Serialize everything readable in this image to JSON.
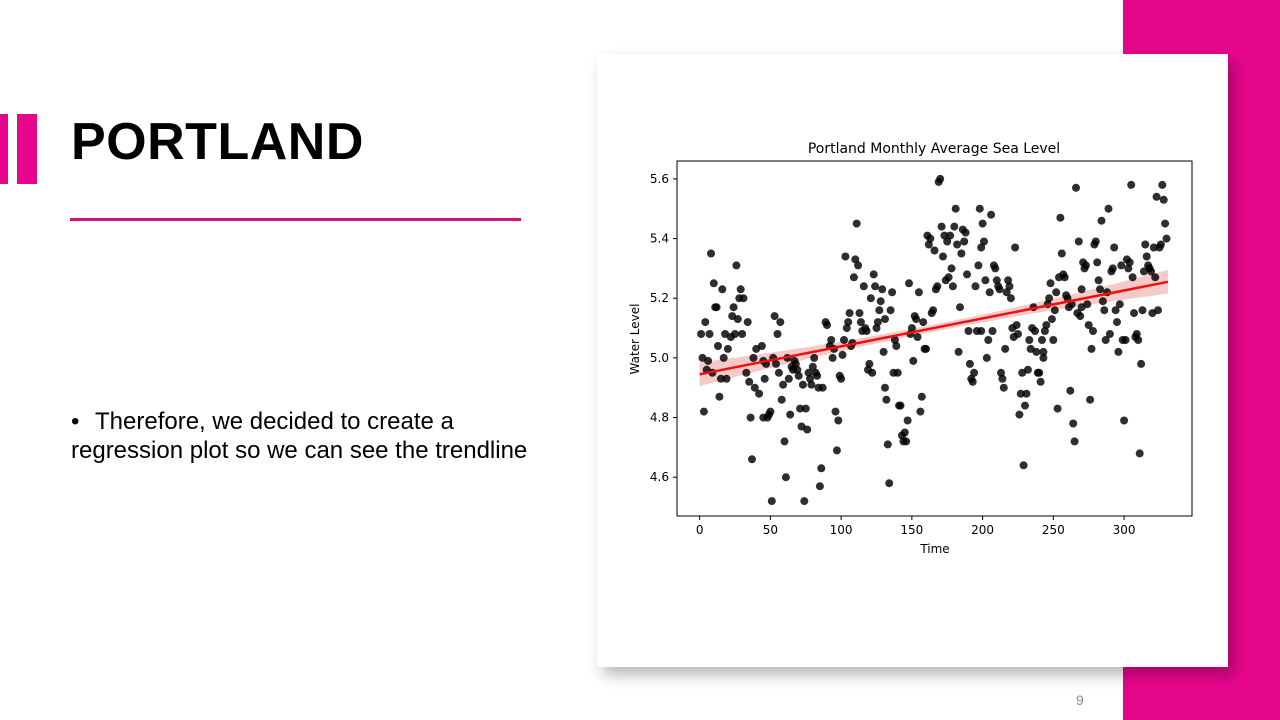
{
  "slide": {
    "title": "PORTLAND",
    "bullet": "Therefore, we decided to create a regression plot so we can see the trendline",
    "page_number": "9",
    "accent_color": "#e6068c"
  },
  "chart_data": {
    "type": "scatter",
    "title": "Portland Monthly Average Sea Level",
    "xlabel": "Time",
    "ylabel": "Water Level",
    "xlim": [
      -16,
      348
    ],
    "ylim": [
      4.47,
      5.66
    ],
    "xticks": [
      0,
      50,
      100,
      150,
      200,
      250,
      300
    ],
    "yticks": [
      4.6,
      4.8,
      5.0,
      5.2,
      5.4,
      5.6
    ],
    "xtick_labels": [
      "0",
      "50",
      "100",
      "150",
      "200",
      "250",
      "300"
    ],
    "ytick_labels": [
      "4.6",
      "4.8",
      "5.0",
      "5.2",
      "5.4",
      "5.6"
    ],
    "grid": false,
    "point_color": "#000000",
    "regression": {
      "color": "#ee1111",
      "ci_color": "#f4b8b8",
      "x_range": [
        0,
        331
      ],
      "y_start": 4.945,
      "y_end": 5.255,
      "ci_halfwidth_ends": 0.04,
      "ci_halfwidth_mid": 0.012
    },
    "points": [
      [
        1,
        5.08
      ],
      [
        2,
        5.0
      ],
      [
        3,
        4.82
      ],
      [
        4,
        5.12
      ],
      [
        5,
        4.96
      ],
      [
        6,
        4.99
      ],
      [
        7,
        5.08
      ],
      [
        8,
        5.35
      ],
      [
        9,
        4.95
      ],
      [
        10,
        5.25
      ],
      [
        11,
        5.17
      ],
      [
        12,
        5.17
      ],
      [
        13,
        5.04
      ],
      [
        14,
        4.87
      ],
      [
        15,
        4.93
      ],
      [
        16,
        5.23
      ],
      [
        17,
        5.0
      ],
      [
        18,
        5.08
      ],
      [
        19,
        4.93
      ],
      [
        20,
        5.03
      ],
      [
        22,
        5.07
      ],
      [
        23,
        5.14
      ],
      [
        24,
        5.17
      ],
      [
        25,
        5.08
      ],
      [
        26,
        5.31
      ],
      [
        27,
        5.13
      ],
      [
        28,
        5.2
      ],
      [
        29,
        5.23
      ],
      [
        30,
        5.08
      ],
      [
        31,
        5.2
      ],
      [
        33,
        4.95
      ],
      [
        34,
        5.12
      ],
      [
        35,
        4.92
      ],
      [
        36,
        4.8
      ],
      [
        37,
        4.66
      ],
      [
        38,
        5.0
      ],
      [
        39,
        4.9
      ],
      [
        40,
        5.03
      ],
      [
        42,
        4.88
      ],
      [
        44,
        5.04
      ],
      [
        45,
        4.99
      ],
      [
        46,
        4.93
      ],
      [
        47,
        4.98
      ],
      [
        48,
        4.8
      ],
      [
        49,
        4.81
      ],
      [
        50,
        4.82
      ],
      [
        51,
        4.52
      ],
      [
        52,
        5.0
      ],
      [
        53,
        5.14
      ],
      [
        54,
        4.98
      ],
      [
        55,
        5.08
      ],
      [
        56,
        4.95
      ],
      [
        57,
        5.12
      ],
      [
        58,
        4.86
      ],
      [
        59,
        4.91
      ],
      [
        60,
        4.72
      ],
      [
        61,
        4.6
      ],
      [
        62,
        5.0
      ],
      [
        63,
        4.93
      ],
      [
        64,
        4.81
      ],
      [
        65,
        4.97
      ],
      [
        66,
        4.96
      ],
      [
        67,
        4.99
      ],
      [
        68,
        4.98
      ],
      [
        69,
        4.96
      ],
      [
        70,
        4.94
      ],
      [
        71,
        4.83
      ],
      [
        72,
        4.77
      ],
      [
        73,
        4.91
      ],
      [
        74,
        4.52
      ],
      [
        75,
        4.83
      ],
      [
        76,
        4.76
      ],
      [
        77,
        4.95
      ],
      [
        78,
        4.93
      ],
      [
        79,
        4.91
      ],
      [
        80,
        4.97
      ],
      [
        81,
        5.0
      ],
      [
        82,
        4.95
      ],
      [
        83,
        4.94
      ],
      [
        84,
        4.9
      ],
      [
        85,
        4.57
      ],
      [
        86,
        4.63
      ],
      [
        87,
        4.9
      ],
      [
        89,
        5.12
      ],
      [
        90,
        5.11
      ],
      [
        92,
        5.04
      ],
      [
        93,
        5.06
      ],
      [
        94,
        5.0
      ],
      [
        95,
        5.03
      ],
      [
        96,
        4.82
      ],
      [
        97,
        4.69
      ],
      [
        98,
        4.79
      ],
      [
        99,
        4.94
      ],
      [
        100,
        4.93
      ],
      [
        101,
        5.01
      ],
      [
        102,
        5.06
      ],
      [
        103,
        5.34
      ],
      [
        104,
        5.1
      ],
      [
        105,
        5.12
      ],
      [
        106,
        5.15
      ],
      [
        107,
        5.04
      ],
      [
        108,
        5.05
      ],
      [
        109,
        5.27
      ],
      [
        110,
        5.33
      ],
      [
        111,
        5.45
      ],
      [
        112,
        5.31
      ],
      [
        113,
        5.15
      ],
      [
        114,
        5.12
      ],
      [
        115,
        5.09
      ],
      [
        116,
        5.24
      ],
      [
        117,
        5.1
      ],
      [
        118,
        5.09
      ],
      [
        119,
        4.96
      ],
      [
        120,
        4.98
      ],
      [
        121,
        5.2
      ],
      [
        122,
        4.95
      ],
      [
        123,
        5.28
      ],
      [
        124,
        5.24
      ],
      [
        125,
        5.1
      ],
      [
        126,
        5.12
      ],
      [
        127,
        5.16
      ],
      [
        128,
        5.19
      ],
      [
        129,
        5.23
      ],
      [
        130,
        5.02
      ],
      [
        131,
        4.9
      ],
      [
        132,
        4.86
      ],
      [
        133,
        4.71
      ],
      [
        134,
        4.58
      ],
      [
        135,
        5.16
      ],
      [
        136,
        5.22
      ],
      [
        137,
        4.95
      ],
      [
        138,
        5.06
      ],
      [
        139,
        5.04
      ],
      [
        140,
        4.95
      ],
      [
        141,
        4.84
      ],
      [
        142,
        4.84
      ],
      [
        143,
        4.74
      ],
      [
        144,
        4.72
      ],
      [
        145,
        4.75
      ],
      [
        146,
        4.72
      ],
      [
        147,
        4.79
      ],
      [
        148,
        5.25
      ],
      [
        149,
        5.08
      ],
      [
        150,
        5.1
      ],
      [
        151,
        4.99
      ],
      [
        152,
        5.14
      ],
      [
        153,
        5.13
      ],
      [
        154,
        5.07
      ],
      [
        155,
        5.22
      ],
      [
        156,
        4.82
      ],
      [
        157,
        4.87
      ],
      [
        158,
        5.12
      ],
      [
        159,
        5.03
      ],
      [
        160,
        5.03
      ],
      [
        161,
        5.41
      ],
      [
        162,
        5.38
      ],
      [
        163,
        5.4
      ],
      [
        164,
        5.15
      ],
      [
        165,
        5.16
      ],
      [
        166,
        5.36
      ],
      [
        167,
        5.23
      ],
      [
        168,
        5.24
      ],
      [
        169,
        5.59
      ],
      [
        170,
        5.6
      ],
      [
        171,
        5.44
      ],
      [
        172,
        5.34
      ],
      [
        173,
        5.41
      ],
      [
        174,
        5.26
      ],
      [
        175,
        5.39
      ],
      [
        176,
        5.27
      ],
      [
        177,
        5.41
      ],
      [
        178,
        5.3
      ],
      [
        179,
        5.24
      ],
      [
        180,
        5.44
      ],
      [
        181,
        5.5
      ],
      [
        182,
        5.38
      ],
      [
        183,
        5.02
      ],
      [
        184,
        5.17
      ],
      [
        185,
        5.35
      ],
      [
        186,
        5.43
      ],
      [
        187,
        5.39
      ],
      [
        188,
        5.42
      ],
      [
        189,
        5.28
      ],
      [
        190,
        5.09
      ],
      [
        191,
        4.98
      ],
      [
        192,
        4.93
      ],
      [
        193,
        4.92
      ],
      [
        194,
        4.95
      ],
      [
        195,
        5.24
      ],
      [
        196,
        5.09
      ],
      [
        197,
        5.31
      ],
      [
        198,
        5.5
      ],
      [
        199,
        5.37
      ],
      [
        200,
        5.45
      ],
      [
        201,
        5.39
      ],
      [
        202,
        5.26
      ],
      [
        203,
        5.0
      ],
      [
        204,
        5.06
      ],
      [
        205,
        5.22
      ],
      [
        206,
        5.48
      ],
      [
        207,
        5.09
      ],
      [
        208,
        5.31
      ],
      [
        209,
        5.3
      ],
      [
        210,
        5.26
      ],
      [
        211,
        5.24
      ],
      [
        212,
        5.23
      ],
      [
        213,
        4.95
      ],
      [
        214,
        4.93
      ],
      [
        215,
        4.9
      ],
      [
        216,
        5.03
      ],
      [
        217,
        5.22
      ],
      [
        218,
        5.26
      ],
      [
        219,
        5.24
      ],
      [
        220,
        5.2
      ],
      [
        221,
        5.1
      ],
      [
        222,
        5.07
      ],
      [
        223,
        5.37
      ],
      [
        224,
        5.11
      ],
      [
        225,
        5.08
      ],
      [
        226,
        4.81
      ],
      [
        227,
        4.88
      ],
      [
        228,
        4.95
      ],
      [
        229,
        4.64
      ],
      [
        230,
        4.84
      ],
      [
        231,
        4.88
      ],
      [
        232,
        4.96
      ],
      [
        233,
        5.06
      ],
      [
        234,
        5.03
      ],
      [
        235,
        5.1
      ],
      [
        236,
        5.17
      ],
      [
        237,
        5.09
      ],
      [
        238,
        5.02
      ],
      [
        239,
        4.95
      ],
      [
        240,
        4.95
      ],
      [
        241,
        4.92
      ],
      [
        242,
        5.06
      ],
      [
        243,
        5.0
      ],
      [
        244,
        5.09
      ],
      [
        245,
        5.11
      ],
      [
        246,
        5.18
      ],
      [
        247,
        5.2
      ],
      [
        248,
        5.25
      ],
      [
        249,
        5.13
      ],
      [
        250,
        5.06
      ],
      [
        251,
        5.16
      ],
      [
        252,
        5.22
      ],
      [
        253,
        4.83
      ],
      [
        254,
        5.27
      ],
      [
        255,
        5.47
      ],
      [
        256,
        5.35
      ],
      [
        257,
        5.28
      ],
      [
        258,
        5.27
      ],
      [
        259,
        5.21
      ],
      [
        260,
        5.2
      ],
      [
        261,
        5.17
      ],
      [
        262,
        4.89
      ],
      [
        263,
        5.18
      ],
      [
        264,
        4.78
      ],
      [
        265,
        4.72
      ],
      [
        266,
        5.57
      ],
      [
        267,
        5.15
      ],
      [
        268,
        5.39
      ],
      [
        269,
        5.14
      ],
      [
        270,
        5.17
      ],
      [
        271,
        5.32
      ],
      [
        272,
        5.3
      ],
      [
        273,
        5.31
      ],
      [
        274,
        5.18
      ],
      [
        275,
        5.11
      ],
      [
        276,
        4.86
      ],
      [
        277,
        5.03
      ],
      [
        278,
        5.09
      ],
      [
        279,
        5.38
      ],
      [
        280,
        5.39
      ],
      [
        281,
        5.32
      ],
      [
        282,
        5.26
      ],
      [
        283,
        5.23
      ],
      [
        284,
        5.46
      ],
      [
        285,
        5.19
      ],
      [
        286,
        5.16
      ],
      [
        287,
        5.06
      ],
      [
        288,
        5.22
      ],
      [
        289,
        5.5
      ],
      [
        290,
        5.08
      ],
      [
        291,
        5.29
      ],
      [
        292,
        5.3
      ],
      [
        293,
        5.37
      ],
      [
        294,
        5.16
      ],
      [
        295,
        5.12
      ],
      [
        296,
        5.02
      ],
      [
        297,
        5.18
      ],
      [
        298,
        5.31
      ],
      [
        299,
        5.06
      ],
      [
        300,
        4.79
      ],
      [
        301,
        5.06
      ],
      [
        302,
        5.33
      ],
      [
        303,
        5.3
      ],
      [
        304,
        5.32
      ],
      [
        305,
        5.58
      ],
      [
        306,
        5.27
      ],
      [
        307,
        5.15
      ],
      [
        308,
        5.07
      ],
      [
        309,
        5.08
      ],
      [
        310,
        5.06
      ],
      [
        311,
        4.68
      ],
      [
        312,
        4.98
      ],
      [
        313,
        5.16
      ],
      [
        314,
        5.29
      ],
      [
        315,
        5.38
      ],
      [
        316,
        5.34
      ],
      [
        317,
        5.31
      ],
      [
        318,
        5.3
      ],
      [
        319,
        5.29
      ],
      [
        320,
        5.15
      ],
      [
        321,
        5.37
      ],
      [
        322,
        5.27
      ],
      [
        323,
        5.54
      ],
      [
        324,
        5.16
      ],
      [
        325,
        5.37
      ],
      [
        326,
        5.38
      ],
      [
        327,
        5.58
      ],
      [
        328,
        5.53
      ],
      [
        329,
        5.45
      ],
      [
        330,
        5.4
      ],
      [
        131,
        5.13
      ],
      [
        45,
        4.8
      ],
      [
        243,
        5.02
      ],
      [
        199,
        5.09
      ],
      [
        270,
        5.23
      ]
    ]
  }
}
